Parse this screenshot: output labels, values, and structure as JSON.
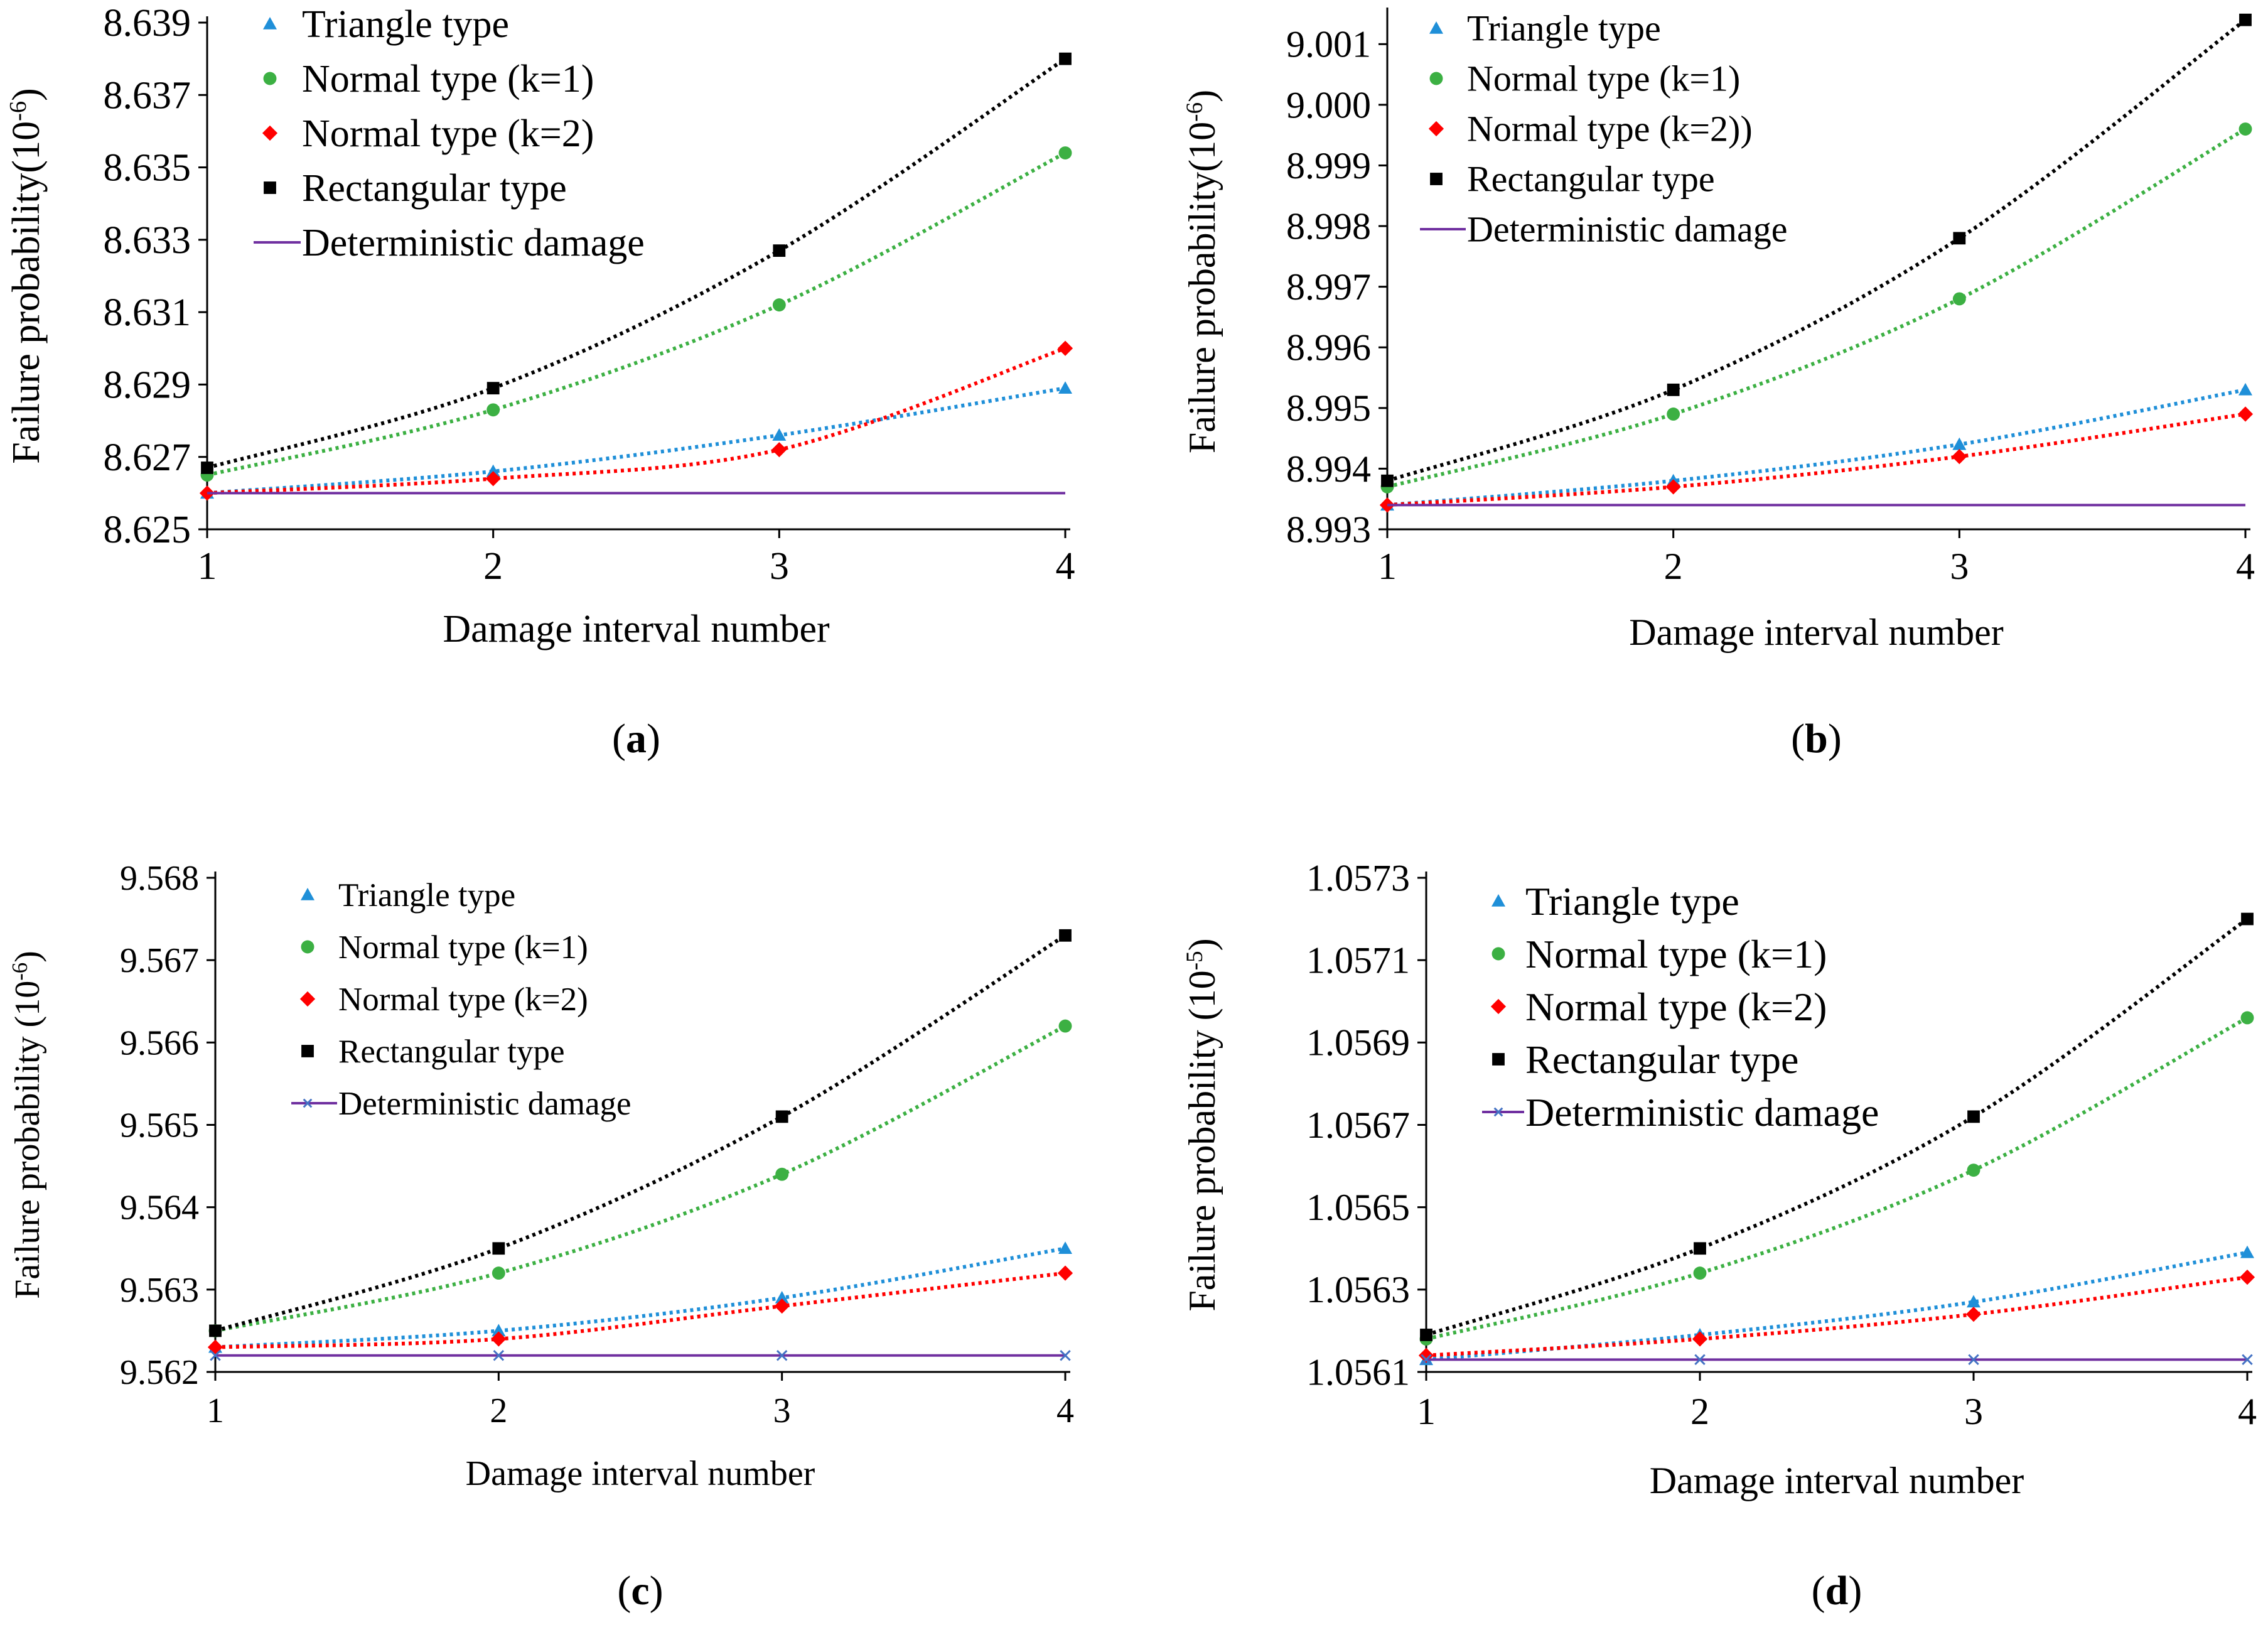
{
  "figure": {
    "colors": {
      "triangle": "#1F8FD8",
      "normal_k1": "#3CB043",
      "normal_k2": "#FF0000",
      "rectangular": "#000000",
      "deterministic": "#7030A0",
      "axis": "#000000"
    }
  },
  "chart_data": [
    {
      "type": "line",
      "panel_label": "(a)",
      "caption_letter": "a",
      "xlabel": "Damage interval number",
      "ylabel": "Failure probability(10",
      "ylabel_exp": "-6",
      "ylabel_close": ")",
      "x": [
        1,
        2,
        3,
        4
      ],
      "xticks": [
        "1",
        "2",
        "3",
        "4"
      ],
      "ylim": [
        8.625,
        8.639
      ],
      "yticks": [
        "8.625",
        "8.627",
        "8.629",
        "8.631",
        "8.633",
        "8.635",
        "8.637",
        "8.639"
      ],
      "series": [
        {
          "name": "Triangle type",
          "key": "triangle",
          "marker": "triangle",
          "values": [
            8.626,
            8.6266,
            8.6276,
            8.6289
          ]
        },
        {
          "name": "Normal type (k=1)",
          "key": "normal_k1",
          "marker": "circle",
          "values": [
            8.6265,
            8.6283,
            8.6312,
            8.6354
          ]
        },
        {
          "name": "Normal type (k=2)",
          "key": "normal_k2",
          "marker": "diamond",
          "values": [
            8.626,
            8.6264,
            8.6272,
            8.63
          ]
        },
        {
          "name": "Rectangular type",
          "key": "rectangular",
          "marker": "square",
          "values": [
            8.6267,
            8.6289,
            8.6327,
            8.638
          ]
        },
        {
          "name": "Deterministic damage",
          "key": "deterministic",
          "marker": "none",
          "values": [
            8.626,
            8.626,
            8.626,
            8.626
          ]
        }
      ]
    },
    {
      "type": "line",
      "panel_label": "(b)",
      "caption_letter": "b",
      "xlabel": "Damage interval number",
      "ylabel": "Failure probability(10",
      "ylabel_exp": "-6",
      "ylabel_close": ")",
      "x": [
        1,
        2,
        3,
        4
      ],
      "xticks": [
        "1",
        "2",
        "3",
        "4"
      ],
      "ylim": [
        8.993,
        9.0015
      ],
      "yticks": [
        "8.993",
        "8.994",
        "8.995",
        "8.996",
        "8.997",
        "8.998",
        "8.999",
        "9.000",
        "9.001"
      ],
      "series": [
        {
          "name": "Triangle type",
          "key": "triangle",
          "marker": "triangle",
          "values": [
            8.9934,
            8.9938,
            8.9944,
            8.9953
          ]
        },
        {
          "name": "Normal type (k=1)",
          "key": "normal_k1",
          "marker": "circle",
          "values": [
            8.9937,
            8.9949,
            8.9968,
            8.9996
          ]
        },
        {
          "name": "Normal type (k=2))",
          "key": "normal_k2",
          "marker": "diamond",
          "values": [
            8.9934,
            8.9937,
            8.9942,
            8.9949
          ]
        },
        {
          "name": "Rectangular type",
          "key": "rectangular",
          "marker": "square",
          "values": [
            8.9938,
            8.9953,
            8.9978,
            9.0014
          ]
        },
        {
          "name": "Deterministic damage",
          "key": "deterministic",
          "marker": "none",
          "values": [
            8.9934,
            8.9934,
            8.9934,
            8.9934
          ]
        }
      ]
    },
    {
      "type": "line",
      "panel_label": "(c)",
      "caption_letter": "c",
      "xlabel": "Damage interval number",
      "ylabel": "Failure probability (10",
      "ylabel_exp": "-6",
      "ylabel_close": ")",
      "x": [
        1,
        2,
        3,
        4
      ],
      "xticks": [
        "1",
        "2",
        "3",
        "4"
      ],
      "ylim": [
        9.562,
        9.568
      ],
      "yticks": [
        "9.562",
        "9.563",
        "9.564",
        "9.565",
        "9.566",
        "9.567",
        "9.568"
      ],
      "series": [
        {
          "name": "Triangle type",
          "key": "triangle",
          "marker": "triangle",
          "values": [
            9.5623,
            9.5625,
            9.5629,
            9.5635
          ]
        },
        {
          "name": "Normal type (k=1)",
          "key": "normal_k1",
          "marker": "circle",
          "values": [
            9.5625,
            9.5632,
            9.5644,
            9.5662
          ]
        },
        {
          "name": "Normal type (k=2)",
          "key": "normal_k2",
          "marker": "diamond",
          "values": [
            9.5623,
            9.5624,
            9.5628,
            9.5632
          ]
        },
        {
          "name": "Rectangular type",
          "key": "rectangular",
          "marker": "square",
          "values": [
            9.5625,
            9.5635,
            9.5651,
            9.5673
          ]
        },
        {
          "name": "Deterministic damage",
          "key": "deterministic",
          "marker": "x",
          "values": [
            9.5622,
            9.5622,
            9.5622,
            9.5622
          ]
        }
      ]
    },
    {
      "type": "line",
      "panel_label": "(d)",
      "caption_letter": "d",
      "xlabel": "Damage interval number",
      "ylabel": "Failure probability  (10",
      "ylabel_exp": "-5",
      "ylabel_close": ")",
      "x": [
        1,
        2,
        3,
        4
      ],
      "xticks": [
        "1",
        "2",
        "3",
        "4"
      ],
      "ylim": [
        1.0561,
        1.0573
      ],
      "yticks": [
        "1.0561",
        "1.0563",
        "1.0565",
        "1.0567",
        "1.0569",
        "1.0571",
        "1.0573"
      ],
      "series": [
        {
          "name": "Triangle type",
          "key": "triangle",
          "marker": "triangle",
          "values": [
            1.05613,
            1.05619,
            1.05627,
            1.05639
          ]
        },
        {
          "name": "Normal type (k=1)",
          "key": "normal_k1",
          "marker": "circle",
          "values": [
            1.05618,
            1.05634,
            1.05659,
            1.05696
          ]
        },
        {
          "name": "Normal type (k=2)",
          "key": "normal_k2",
          "marker": "diamond",
          "values": [
            1.05614,
            1.05618,
            1.05624,
            1.05633
          ]
        },
        {
          "name": "Rectangular type",
          "key": "rectangular",
          "marker": "square",
          "values": [
            1.05619,
            1.0564,
            1.05672,
            1.0572
          ]
        },
        {
          "name": "Deterministic damage",
          "key": "deterministic",
          "marker": "x",
          "values": [
            1.05613,
            1.05613,
            1.05613,
            1.05613
          ]
        }
      ]
    }
  ]
}
